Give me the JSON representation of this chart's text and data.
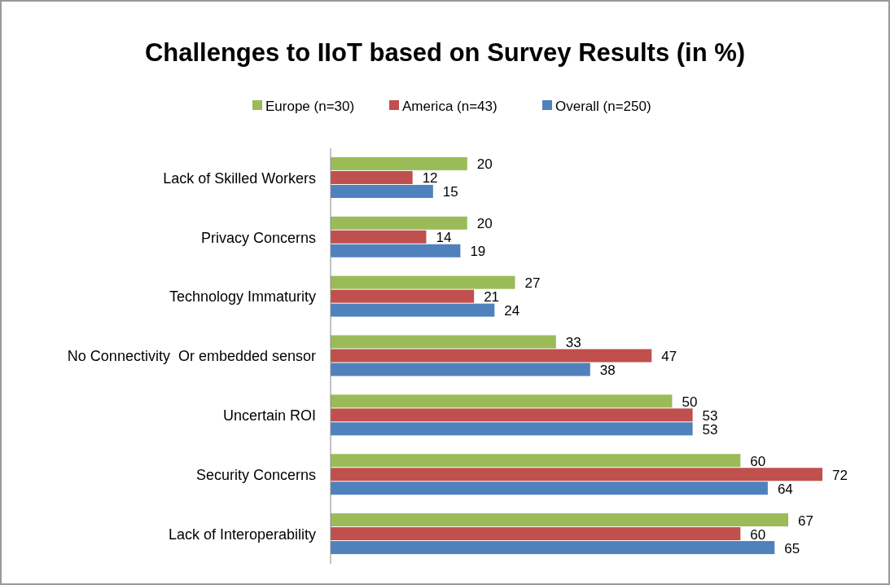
{
  "chart_data": {
    "type": "bar",
    "orientation": "horizontal",
    "title": "Challenges to IIoT based on Survey Results (in %)",
    "categories": [
      "Lack of Skilled Workers",
      "Privacy Concerns",
      "Technology Immaturity",
      "No Connectivity  Or embedded sensor",
      "Uncertain ROI",
      "Security Concerns",
      "Lack of Interoperability"
    ],
    "series": [
      {
        "name": "Europe (n=30)",
        "color": "#9bbb59",
        "values": [
          20,
          20,
          27,
          33,
          50,
          60,
          67
        ]
      },
      {
        "name": "America (n=43)",
        "color": "#c0504d",
        "values": [
          12,
          14,
          21,
          47,
          53,
          72,
          60
        ]
      },
      {
        "name": "Overall (n=250)",
        "color": "#4f81bd",
        "values": [
          15,
          19,
          24,
          38,
          53,
          64,
          65
        ]
      }
    ],
    "data_labels": true,
    "legend": "top",
    "grid": false
  }
}
